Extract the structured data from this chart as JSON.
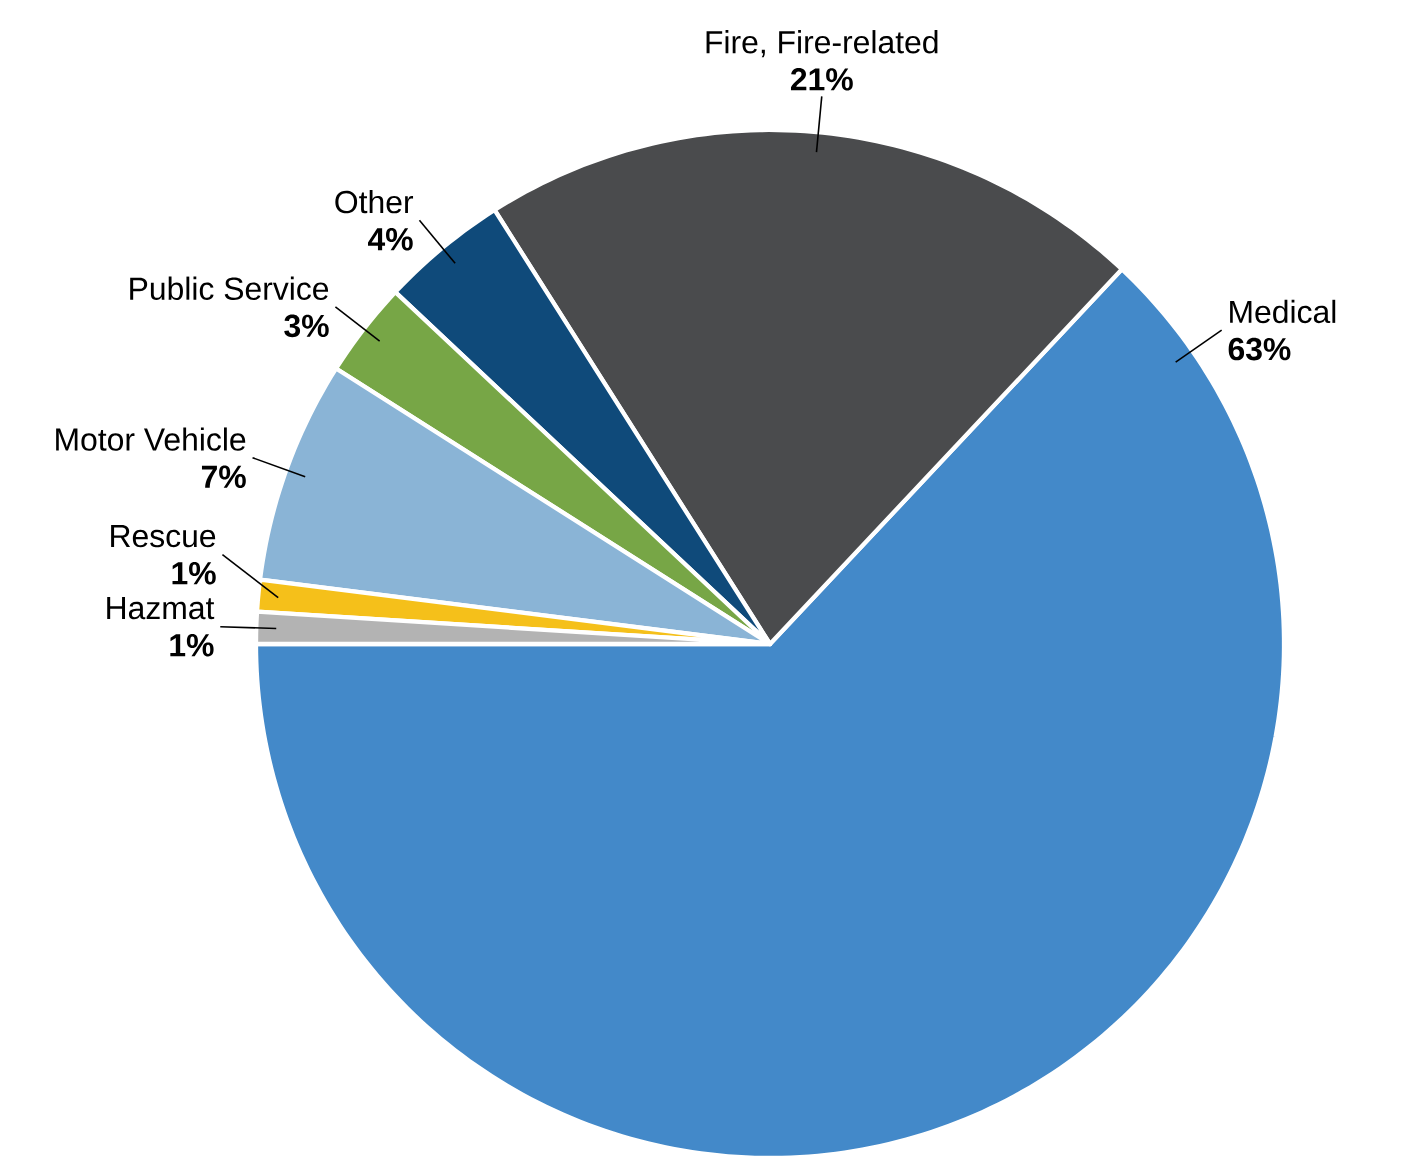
{
  "chart_data": {
    "type": "pie",
    "categories": [
      "Medical",
      "Fire, Fire-related",
      "Other",
      "Public Service",
      "Motor Vehicle",
      "Rescue",
      "Hazmat"
    ],
    "values": [
      63,
      21,
      4,
      3,
      7,
      1,
      1
    ],
    "value_labels": [
      "63%",
      "21%",
      "4%",
      "3%",
      "7%",
      "1%",
      "1%"
    ],
    "colors": [
      "#4389c9",
      "#4a4b4d",
      "#0f4a7a",
      "#77a646",
      "#8ab4d6",
      "#f5c01a",
      "#b3b3b3"
    ]
  }
}
